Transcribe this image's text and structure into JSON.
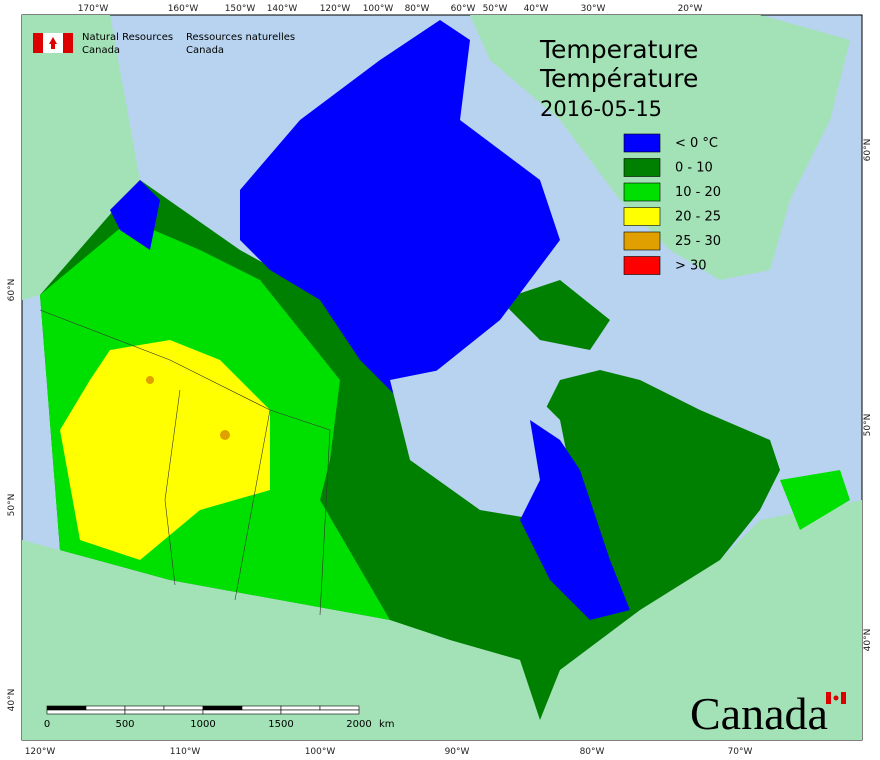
{
  "header": {
    "agency_en": [
      "Natural Resources",
      "Canada"
    ],
    "agency_fr": [
      "Ressources naturelles",
      "Canada"
    ]
  },
  "title": [
    "Temperature",
    "Température",
    "2016-05-15"
  ],
  "legend": {
    "items": [
      {
        "label": "< 0 °C",
        "color": "#0000ff"
      },
      {
        "label": "0 - 10",
        "color": "#008000"
      },
      {
        "label": "10 - 20",
        "color": "#00e000"
      },
      {
        "label": "20 - 25",
        "color": "#ffff00"
      },
      {
        "label": "25 - 30",
        "color": "#e0a000"
      },
      {
        "label": "> 30",
        "color": "#ff0000"
      }
    ]
  },
  "scale": {
    "labels": [
      "0",
      "500",
      "1000",
      "1500",
      "2000"
    ],
    "unit": "km"
  },
  "graticule": {
    "top": [
      "170°W",
      "160°W",
      "150°W",
      "140°W",
      "120°W",
      "100°W",
      "80°W",
      "60°W",
      "50°W",
      "40°W",
      "30°W",
      "20°W"
    ],
    "bottom": [
      "120°W",
      "110°W",
      "100°W",
      "90°W",
      "80°W",
      "70°W"
    ],
    "left": [
      "60°N",
      "50°N",
      "40°N"
    ],
    "right": [
      "60°N",
      "50°N",
      "40°N"
    ]
  },
  "wordmark": "Canada"
}
